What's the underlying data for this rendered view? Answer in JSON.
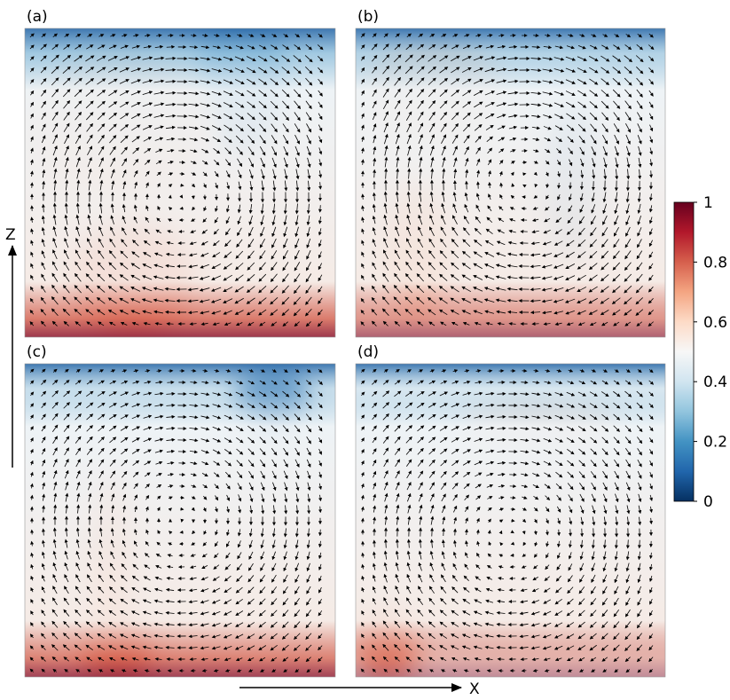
{
  "panels": [
    {
      "label": "(a)"
    },
    {
      "label": "(b)"
    },
    {
      "label": "(c)"
    },
    {
      "label": "(d)"
    }
  ],
  "colorbar": {
    "lim": [
      0,
      1
    ],
    "ticks": [
      0,
      0.2,
      0.4,
      0.6,
      0.8,
      1
    ]
  },
  "axes": {
    "x": "X",
    "z": "Z"
  }
}
